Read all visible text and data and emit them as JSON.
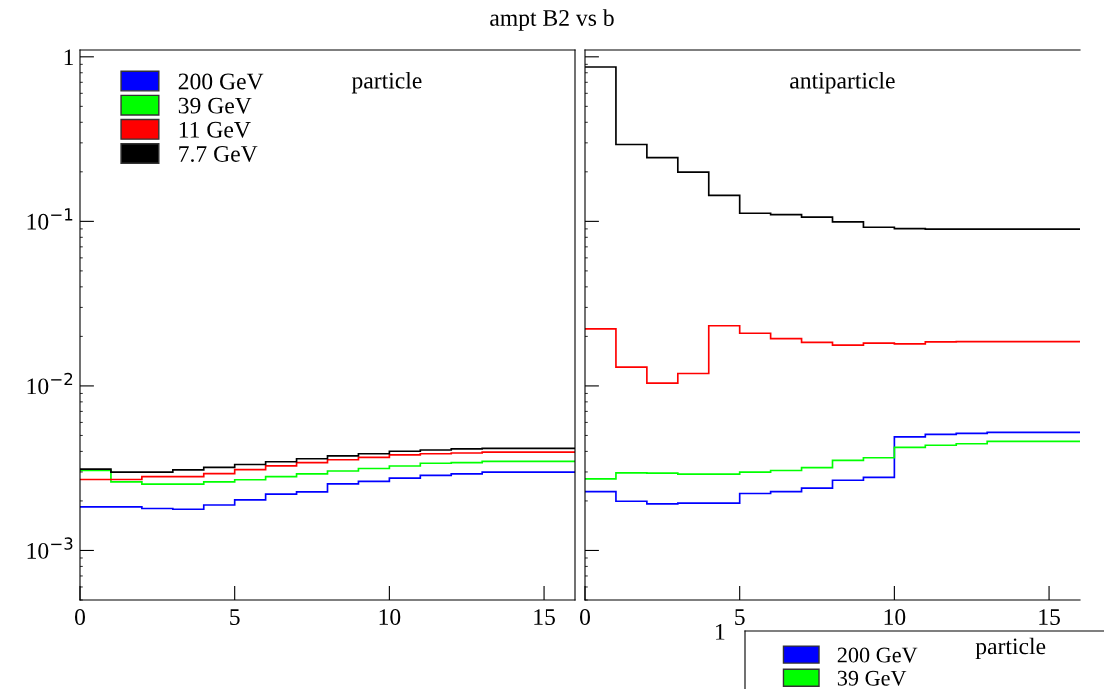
{
  "chart_data": [
    {
      "type": "histogram",
      "title": "ampt B2 vs b",
      "annotations": [
        "particle"
      ],
      "bins": [
        0,
        1,
        2,
        3,
        4,
        5,
        6,
        7,
        8,
        9,
        10,
        11,
        12,
        13,
        14,
        15,
        16
      ],
      "xlim": [
        0,
        16
      ],
      "xticks": [
        0,
        5,
        10,
        15
      ],
      "log": "y",
      "ylim": [
        0.0005,
        1.1
      ],
      "yticks": [
        {
          "value": 1,
          "label": "1"
        },
        {
          "value": 0.1,
          "label": "10$^{−1}$"
        },
        {
          "value": 0.01,
          "label": "10$^{−2}$"
        },
        {
          "value": 0.001,
          "label": "10$^{−3}$"
        }
      ],
      "grid": false,
      "legend": "top left",
      "series": [
        {
          "name": "200 GeV",
          "color": "#0000ff",
          "values": [
            0.00184,
            0.00184,
            0.0018,
            0.00178,
            0.00189,
            0.00203,
            0.0022,
            0.00227,
            0.00254,
            0.00263,
            0.00275,
            0.00286,
            0.00292,
            0.00299,
            0.00299,
            0.00299
          ]
        },
        {
          "name": "39 GeV",
          "color": "#00ff00",
          "values": [
            0.00307,
            0.00261,
            0.00253,
            0.00253,
            0.00261,
            0.00269,
            0.00281,
            0.00292,
            0.00304,
            0.00315,
            0.00326,
            0.00339,
            0.00342,
            0.00348,
            0.00348,
            0.00348
          ]
        },
        {
          "name": "11 GeV",
          "color": "#ff0000",
          "values": [
            0.0027,
            0.0027,
            0.00281,
            0.00281,
            0.00293,
            0.0031,
            0.00327,
            0.00342,
            0.00356,
            0.00368,
            0.00381,
            0.00387,
            0.00391,
            0.00396,
            0.00396,
            0.00396
          ]
        },
        {
          "name": "7.7 GeV",
          "color": "#000000",
          "values": [
            0.00312,
            0.00299,
            0.00299,
            0.00309,
            0.0032,
            0.00333,
            0.00346,
            0.00361,
            0.00376,
            0.00387,
            0.00401,
            0.00408,
            0.00414,
            0.00417,
            0.00417,
            0.00417
          ]
        }
      ]
    },
    {
      "type": "histogram",
      "annotations": [
        "antiparticle"
      ],
      "bins": [
        0,
        1,
        2,
        3,
        4,
        5,
        6,
        7,
        8,
        9,
        10,
        11,
        12,
        13,
        14,
        15,
        16
      ],
      "xlim": [
        0,
        16
      ],
      "xticks": [
        0,
        5,
        10,
        15
      ],
      "log": "y",
      "ylim": [
        0.0005,
        1.1
      ],
      "yticks": [
        {
          "value": 1,
          "label": null
        },
        {
          "value": 0.1,
          "label": null
        },
        {
          "value": 0.01,
          "label": null
        },
        {
          "value": 0.001,
          "label": null
        }
      ],
      "tick_labels": "x",
      "grid": false,
      "series": [
        {
          "color": "#0000ff",
          "values": [
            0.00228,
            0.00199,
            0.00192,
            0.00194,
            0.00194,
            0.00222,
            0.00228,
            0.00239,
            0.00267,
            0.00278,
            0.0049,
            0.00507,
            0.00515,
            0.00522,
            0.00522,
            0.00522
          ]
        },
        {
          "color": "#00ff00",
          "values": [
            0.00272,
            0.00296,
            0.00295,
            0.00291,
            0.00291,
            0.00299,
            0.00306,
            0.00319,
            0.00353,
            0.00366,
            0.00423,
            0.00436,
            0.00445,
            0.0046,
            0.0046,
            0.0046
          ]
        },
        {
          "color": "#ff0000",
          "values": [
            0.0222,
            0.013,
            0.0104,
            0.0119,
            0.0232,
            0.0209,
            0.0194,
            0.0184,
            0.0177,
            0.0182,
            0.018,
            0.0185,
            0.0186,
            0.0186,
            0.0186,
            0.0186
          ]
        },
        {
          "color": "#000000",
          "values": [
            0.867,
            0.293,
            0.244,
            0.199,
            0.144,
            0.112,
            0.11,
            0.106,
            0.0993,
            0.0921,
            0.0904,
            0.0897,
            0.0897,
            0.0897,
            0.0897,
            0.0897
          ]
        }
      ]
    },
    {
      "type": "other",
      "annotations": [
        "1",
        "particle"
      ],
      "legend": "top left",
      "series": [
        {
          "name": "200 GeV",
          "color": "#0000ff"
        },
        {
          "name": "39 GeV",
          "color": "#00ff00"
        }
      ]
    }
  ]
}
